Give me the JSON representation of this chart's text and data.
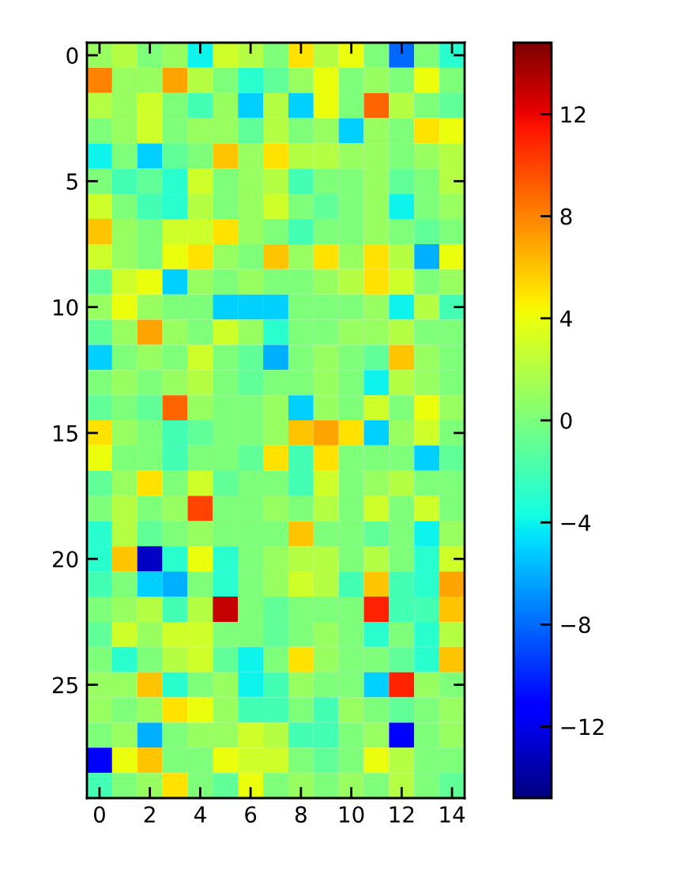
{
  "chart_data": {
    "type": "heatmap",
    "xlim": [
      -0.5,
      14.5
    ],
    "xticks": [
      0,
      2,
      4,
      6,
      8,
      10,
      12,
      14
    ],
    "ylim": [
      29.5,
      -0.5
    ],
    "yticks": [
      0,
      5,
      10,
      15,
      20,
      25
    ],
    "clim": [
      -14.8,
      14.8
    ],
    "cticks": [
      {
        "value": -12,
        "label": "−12"
      },
      {
        "value": -8,
        "label": "−8"
      },
      {
        "value": -4,
        "label": "−4"
      },
      0,
      4,
      8,
      12
    ],
    "cells": [
      [
        1,
        2,
        0,
        1,
        -4,
        3,
        2,
        0,
        5,
        2,
        4,
        0,
        -8,
        0,
        -3
      ],
      [
        8,
        1,
        1,
        7,
        2,
        0,
        -3,
        -1,
        1,
        4,
        0,
        1,
        0,
        4,
        0
      ],
      [
        2,
        1,
        3,
        0,
        -2,
        1,
        -5,
        2,
        -5,
        4,
        0,
        9,
        2,
        0,
        -1
      ],
      [
        0,
        1,
        3,
        0,
        1,
        1,
        -1,
        2,
        0,
        1,
        -5,
        1,
        0,
        5,
        4
      ],
      [
        -4,
        0,
        -5,
        -1,
        0,
        6,
        1,
        5,
        2,
        2,
        1,
        1,
        0,
        1,
        2
      ],
      [
        0,
        -2,
        -1,
        -3,
        3,
        0,
        1,
        2,
        -2,
        0,
        0,
        1,
        -1,
        0,
        2
      ],
      [
        3,
        0,
        -2,
        -3,
        2,
        0,
        1,
        3,
        0,
        -1,
        0,
        1,
        -4,
        0,
        1
      ],
      [
        6,
        1,
        0,
        3,
        3,
        5,
        1,
        0,
        -2,
        0,
        0,
        1,
        0,
        -1,
        0
      ],
      [
        3,
        1,
        0,
        4,
        5,
        1,
        0,
        6,
        1,
        5,
        1,
        5,
        2,
        -6,
        4
      ],
      [
        -1,
        3,
        4,
        -5,
        1,
        0,
        1,
        0,
        0,
        1,
        2,
        5,
        3,
        0,
        1
      ],
      [
        1,
        4,
        1,
        0,
        0,
        -5,
        -5,
        -5,
        0,
        0,
        0,
        1,
        -4,
        2,
        -2
      ],
      [
        -1,
        1,
        7,
        1,
        0,
        3,
        1,
        -3,
        0,
        0,
        1,
        1,
        2,
        0,
        0
      ],
      [
        -5,
        0,
        1,
        0,
        3,
        0,
        -1,
        -6,
        0,
        1,
        0,
        -1,
        6,
        1,
        0
      ],
      [
        0,
        1,
        0,
        1,
        2,
        0,
        -1,
        0,
        0,
        1,
        0,
        -4,
        2,
        1,
        0
      ],
      [
        -1,
        0,
        -1,
        9,
        1,
        0,
        0,
        1,
        -5,
        1,
        0,
        3,
        0,
        4,
        1
      ],
      [
        5,
        1,
        0,
        -2,
        -1,
        0,
        0,
        1,
        6,
        7,
        5,
        -5,
        1,
        3,
        0
      ],
      [
        4,
        0,
        0,
        -2,
        0,
        0,
        -1,
        5,
        -2,
        5,
        0,
        0,
        0,
        -5,
        -1
      ],
      [
        -1,
        1,
        5,
        0,
        3,
        -1,
        0,
        0,
        -2,
        3,
        0,
        1,
        2,
        0,
        0
      ],
      [
        0,
        2,
        0,
        1,
        10,
        0,
        0,
        1,
        0,
        2,
        0,
        3,
        0,
        3,
        0
      ],
      [
        -3,
        2,
        -1,
        0,
        1,
        0,
        0,
        0,
        6,
        0,
        0,
        -1,
        0,
        -4,
        1
      ],
      [
        -3,
        6,
        -13,
        -3,
        4,
        -3,
        0,
        1,
        2,
        2,
        0,
        2,
        0,
        -3,
        3
      ],
      [
        -2,
        0,
        -5,
        -6,
        0,
        -3,
        0,
        1,
        3,
        2,
        -2,
        6,
        -2,
        -3,
        7
      ],
      [
        0,
        1,
        2,
        -2,
        2,
        13,
        0,
        -1,
        0,
        0,
        0,
        11,
        -2,
        -2,
        6
      ],
      [
        -1,
        3,
        1,
        3,
        3,
        0,
        0,
        -1,
        0,
        1,
        0,
        -3,
        0,
        -3,
        2
      ],
      [
        0,
        -3,
        0,
        2,
        3,
        -1,
        -4,
        0,
        5,
        1,
        0,
        0,
        -1,
        -3,
        6
      ],
      [
        1,
        1,
        6,
        -3,
        0,
        1,
        -4,
        -2,
        1,
        0,
        0,
        -5,
        11,
        1,
        0
      ],
      [
        1,
        0,
        1,
        5,
        4,
        1,
        -2,
        -2,
        0,
        -2,
        1,
        0,
        -1,
        0,
        1
      ],
      [
        0,
        1,
        -6,
        0,
        1,
        1,
        3,
        2,
        -2,
        -2,
        0,
        1,
        -11,
        0,
        1
      ],
      [
        -11,
        4,
        6,
        0,
        0,
        4,
        3,
        3,
        0,
        -1,
        0,
        4,
        2,
        0,
        0
      ],
      [
        -2,
        0,
        1,
        5,
        0,
        -1,
        4,
        0,
        1,
        0,
        1,
        0,
        2,
        0,
        -1
      ]
    ]
  }
}
